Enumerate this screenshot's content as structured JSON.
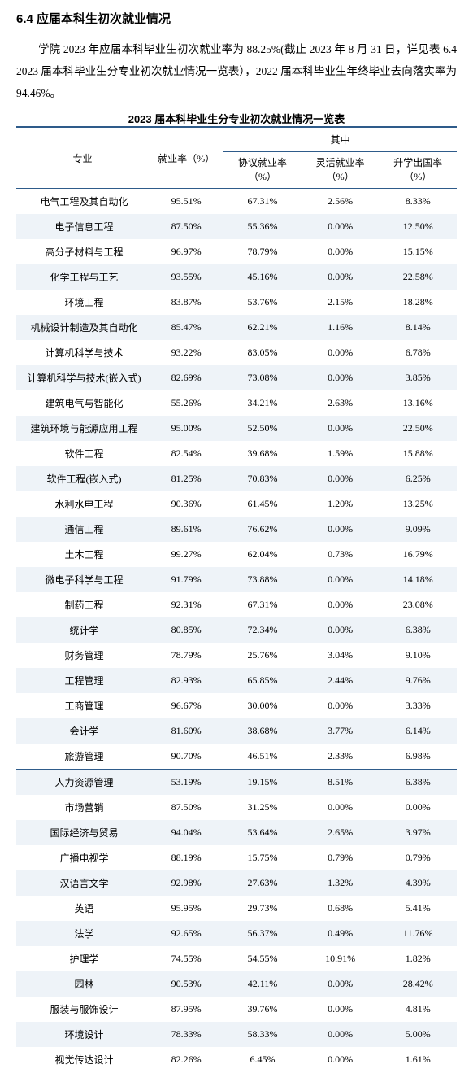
{
  "heading": "6.4 应届本科生初次就业情况",
  "paragraph": "学院 2023 年应届本科毕业生初次就业率为 88.25%(截止 2023 年 8 月 31 日，详见表 6.4 2023 届本科毕业生分专业初次就业情况一览表），2022 届本科毕业生年终毕业去向落实率为 94.46%。",
  "table": {
    "title": "2023 届本科毕业生分专业初次就业情况一览表",
    "columns": {
      "major": "专业",
      "rate": "就业率（%）",
      "group": "其中",
      "sub1": "协议就业率（%）",
      "sub2": "灵活就业率（%）",
      "sub3": "升学出国率（%）"
    },
    "rows": [
      {
        "major": "电气工程及其自动化",
        "rate": "95.51%",
        "a": "67.31%",
        "b": "2.56%",
        "c": "8.33%",
        "sep": false
      },
      {
        "major": "电子信息工程",
        "rate": "87.50%",
        "a": "55.36%",
        "b": "0.00%",
        "c": "12.50%",
        "sep": false
      },
      {
        "major": "高分子材料与工程",
        "rate": "96.97%",
        "a": "78.79%",
        "b": "0.00%",
        "c": "15.15%",
        "sep": false
      },
      {
        "major": "化学工程与工艺",
        "rate": "93.55%",
        "a": "45.16%",
        "b": "0.00%",
        "c": "22.58%",
        "sep": false
      },
      {
        "major": "环境工程",
        "rate": "83.87%",
        "a": "53.76%",
        "b": "2.15%",
        "c": "18.28%",
        "sep": false
      },
      {
        "major": "机械设计制造及其自动化",
        "rate": "85.47%",
        "a": "62.21%",
        "b": "1.16%",
        "c": "8.14%",
        "sep": false
      },
      {
        "major": "计算机科学与技术",
        "rate": "93.22%",
        "a": "83.05%",
        "b": "0.00%",
        "c": "6.78%",
        "sep": false
      },
      {
        "major": "计算机科学与技术(嵌入式)",
        "rate": "82.69%",
        "a": "73.08%",
        "b": "0.00%",
        "c": "3.85%",
        "sep": false
      },
      {
        "major": "建筑电气与智能化",
        "rate": "55.26%",
        "a": "34.21%",
        "b": "2.63%",
        "c": "13.16%",
        "sep": false
      },
      {
        "major": "建筑环境与能源应用工程",
        "rate": "95.00%",
        "a": "52.50%",
        "b": "0.00%",
        "c": "22.50%",
        "sep": false
      },
      {
        "major": "软件工程",
        "rate": "82.54%",
        "a": "39.68%",
        "b": "1.59%",
        "c": "15.88%",
        "sep": false
      },
      {
        "major": "软件工程(嵌入式)",
        "rate": "81.25%",
        "a": "70.83%",
        "b": "0.00%",
        "c": "6.25%",
        "sep": false
      },
      {
        "major": "水利水电工程",
        "rate": "90.36%",
        "a": "61.45%",
        "b": "1.20%",
        "c": "13.25%",
        "sep": false
      },
      {
        "major": "通信工程",
        "rate": "89.61%",
        "a": "76.62%",
        "b": "0.00%",
        "c": "9.09%",
        "sep": false
      },
      {
        "major": "土木工程",
        "rate": "99.27%",
        "a": "62.04%",
        "b": "0.73%",
        "c": "16.79%",
        "sep": false
      },
      {
        "major": "微电子科学与工程",
        "rate": "91.79%",
        "a": "73.88%",
        "b": "0.00%",
        "c": "14.18%",
        "sep": false
      },
      {
        "major": "制药工程",
        "rate": "92.31%",
        "a": "67.31%",
        "b": "0.00%",
        "c": "23.08%",
        "sep": false
      },
      {
        "major": "统计学",
        "rate": "80.85%",
        "a": "72.34%",
        "b": "0.00%",
        "c": "6.38%",
        "sep": false
      },
      {
        "major": "财务管理",
        "rate": "78.79%",
        "a": "25.76%",
        "b": "3.04%",
        "c": "9.10%",
        "sep": false
      },
      {
        "major": "工程管理",
        "rate": "82.93%",
        "a": "65.85%",
        "b": "2.44%",
        "c": "9.76%",
        "sep": false
      },
      {
        "major": "工商管理",
        "rate": "96.67%",
        "a": "30.00%",
        "b": "0.00%",
        "c": "3.33%",
        "sep": false
      },
      {
        "major": "会计学",
        "rate": "81.60%",
        "a": "38.68%",
        "b": "3.77%",
        "c": "6.14%",
        "sep": false
      },
      {
        "major": "旅游管理",
        "rate": "90.70%",
        "a": "46.51%",
        "b": "2.33%",
        "c": "6.98%",
        "sep": false
      },
      {
        "major": "人力资源管理",
        "rate": "53.19%",
        "a": "19.15%",
        "b": "8.51%",
        "c": "6.38%",
        "sep": true
      },
      {
        "major": "市场营销",
        "rate": "87.50%",
        "a": "31.25%",
        "b": "0.00%",
        "c": "0.00%",
        "sep": false
      },
      {
        "major": "国际经济与贸易",
        "rate": "94.04%",
        "a": "53.64%",
        "b": "2.65%",
        "c": "3.97%",
        "sep": false
      },
      {
        "major": "广播电视学",
        "rate": "88.19%",
        "a": "15.75%",
        "b": "0.79%",
        "c": "0.79%",
        "sep": false
      },
      {
        "major": "汉语言文学",
        "rate": "92.98%",
        "a": "27.63%",
        "b": "1.32%",
        "c": "4.39%",
        "sep": false
      },
      {
        "major": "英语",
        "rate": "95.95%",
        "a": "29.73%",
        "b": "0.68%",
        "c": "5.41%",
        "sep": false
      },
      {
        "major": "法学",
        "rate": "92.65%",
        "a": "56.37%",
        "b": "0.49%",
        "c": "11.76%",
        "sep": false
      },
      {
        "major": "护理学",
        "rate": "74.55%",
        "a": "54.55%",
        "b": "10.91%",
        "c": "1.82%",
        "sep": false
      },
      {
        "major": "园林",
        "rate": "90.53%",
        "a": "42.11%",
        "b": "0.00%",
        "c": "28.42%",
        "sep": false
      },
      {
        "major": "服装与服饰设计",
        "rate": "87.95%",
        "a": "39.76%",
        "b": "0.00%",
        "c": "4.81%",
        "sep": false
      },
      {
        "major": "环境设计",
        "rate": "78.33%",
        "a": "58.33%",
        "b": "0.00%",
        "c": "5.00%",
        "sep": false
      },
      {
        "major": "视觉传达设计",
        "rate": "82.26%",
        "a": "6.45%",
        "b": "0.00%",
        "c": "1.61%",
        "sep": false
      }
    ],
    "stripe_color": "#eef3f8",
    "border_color": "#2e5b8a"
  }
}
